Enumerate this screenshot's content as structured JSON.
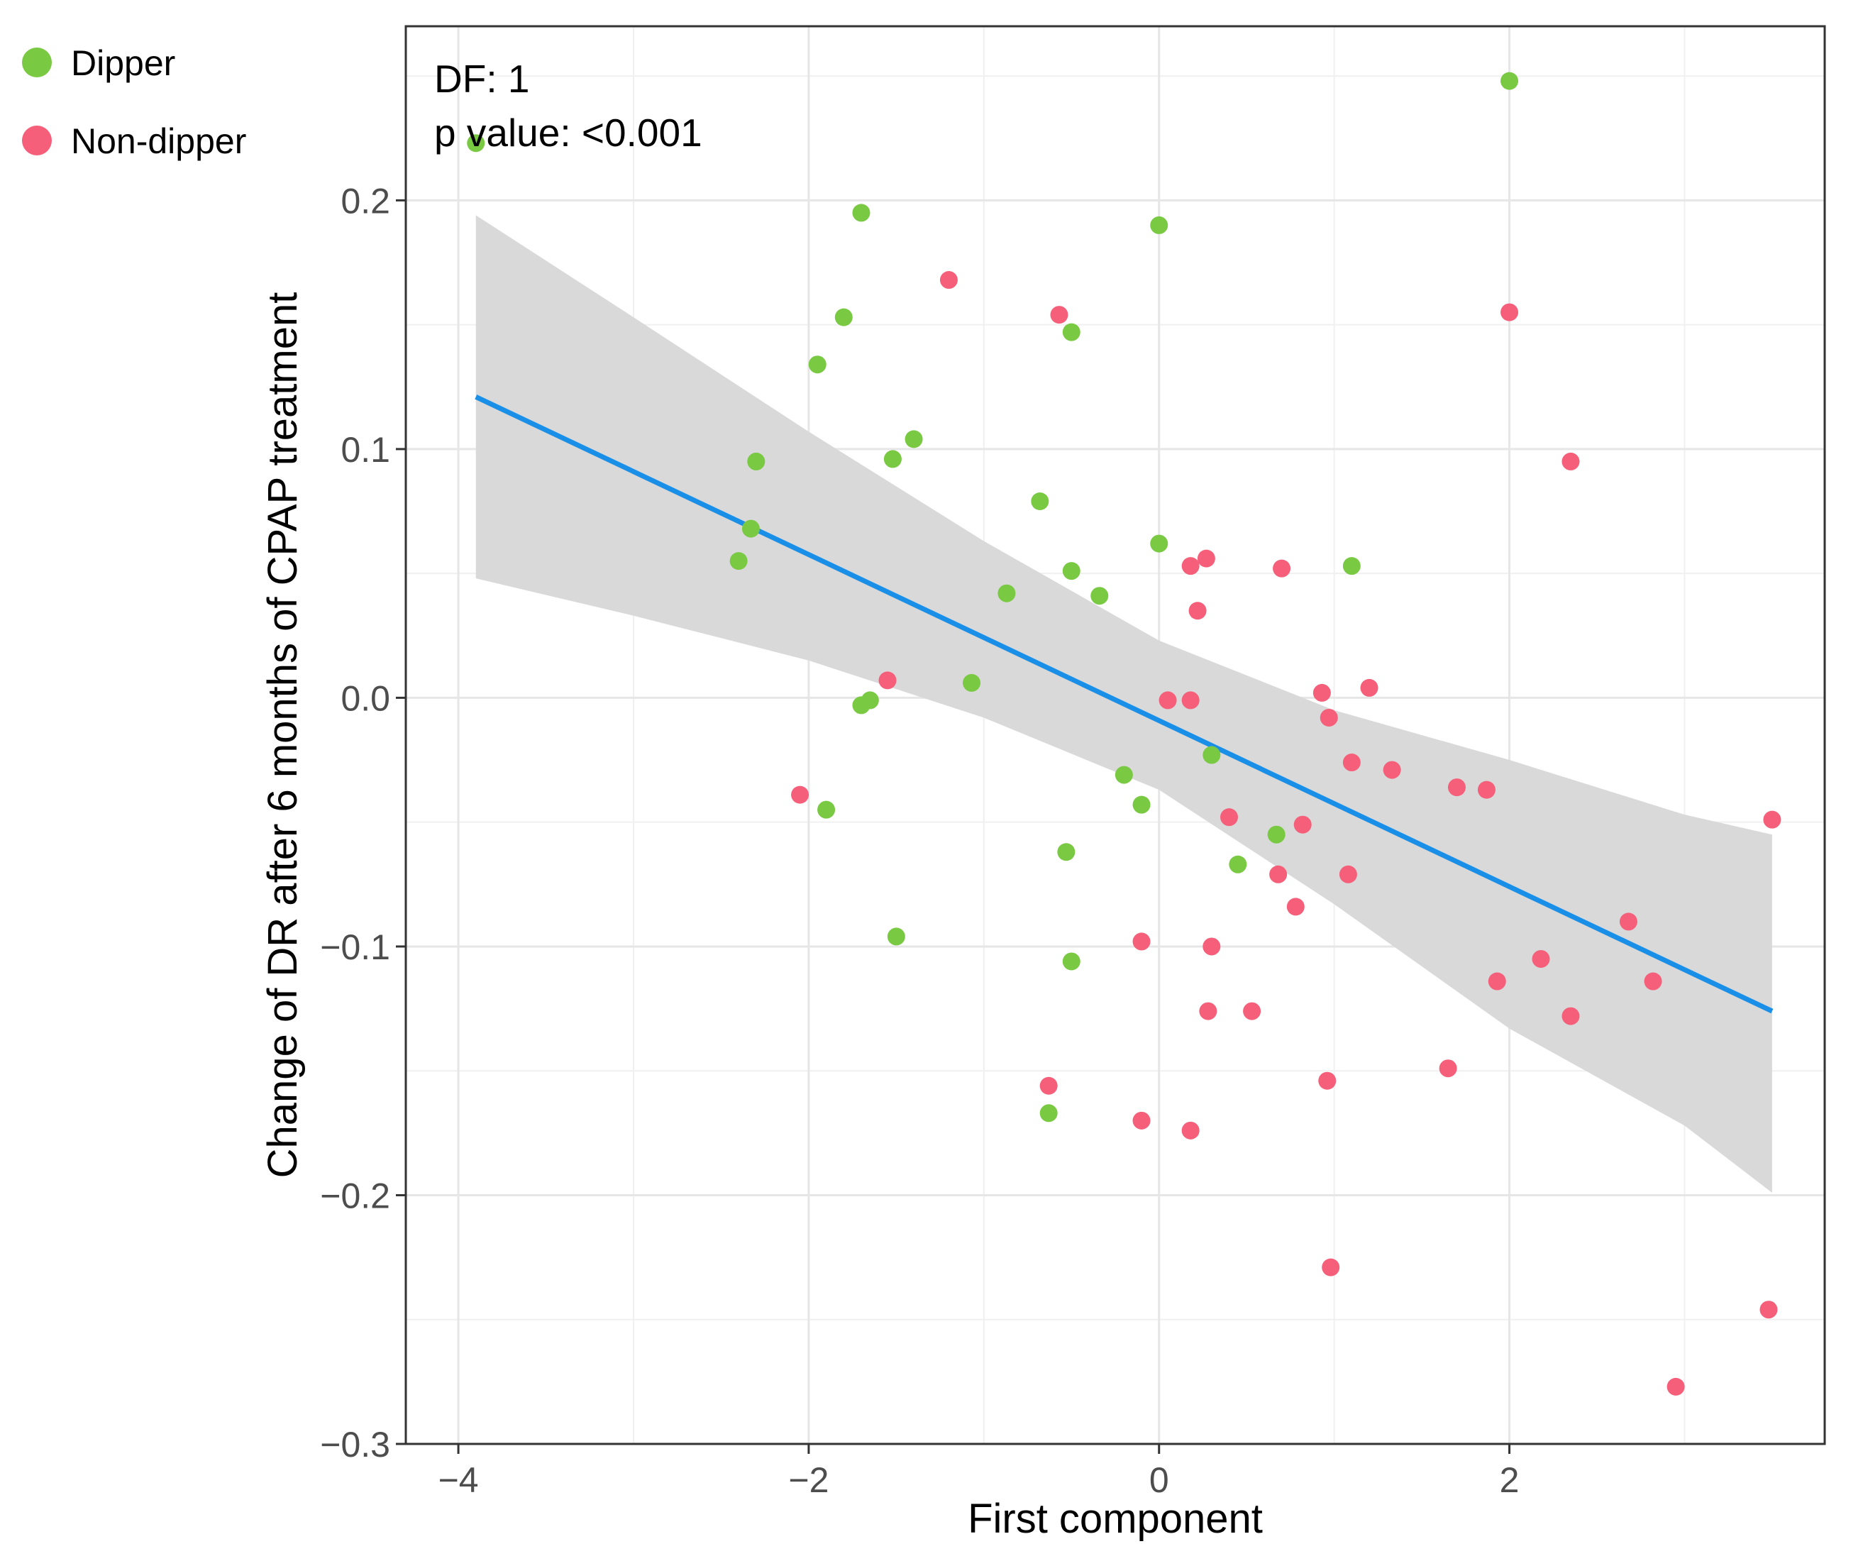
{
  "chart_data": {
    "type": "scatter",
    "title": "",
    "xlabel": "First component",
    "ylabel": "Change of DR after 6 months of CPAP treatment",
    "xlim": [
      -4.3,
      3.8
    ],
    "ylim": [
      -0.3,
      0.27
    ],
    "x_ticks": [
      -4,
      -2,
      0,
      2
    ],
    "x_tick_labels": [
      "−4",
      "−2",
      "0",
      "2"
    ],
    "y_ticks": [
      -0.3,
      -0.2,
      -0.1,
      0.0,
      0.1,
      0.2
    ],
    "y_tick_labels": [
      "−0.3",
      "−0.2",
      "−0.1",
      "0.0",
      "0.1",
      "0.2"
    ],
    "grid": true,
    "legend_position": "top-left",
    "annotations": [
      "DF: 1",
      "p value: <0.001"
    ],
    "colors": {
      "dipper": "#7ac943",
      "non_dipper": "#f55f7a",
      "fit": "#1a8fe8",
      "band": "#d9d9d9"
    },
    "series": [
      {
        "name": "Dipper",
        "color": "#7ac943",
        "points": [
          [
            -3.9,
            0.223
          ],
          [
            2.0,
            0.248
          ],
          [
            -1.7,
            0.195
          ],
          [
            0.0,
            0.19
          ],
          [
            -1.8,
            0.153
          ],
          [
            -0.5,
            0.147
          ],
          [
            -1.95,
            0.134
          ],
          [
            -1.4,
            0.104
          ],
          [
            -2.3,
            0.095
          ],
          [
            -1.52,
            0.096
          ],
          [
            -0.68,
            0.079
          ],
          [
            -2.33,
            0.068
          ],
          [
            0.0,
            0.062
          ],
          [
            -2.4,
            0.055
          ],
          [
            -0.5,
            0.051
          ],
          [
            -0.34,
            0.041
          ],
          [
            -0.87,
            0.042
          ],
          [
            1.1,
            0.053
          ],
          [
            -1.07,
            0.006
          ],
          [
            -1.65,
            -0.001
          ],
          [
            -1.7,
            -0.003
          ],
          [
            0.3,
            -0.023
          ],
          [
            -0.2,
            -0.031
          ],
          [
            -0.1,
            -0.043
          ],
          [
            -1.9,
            -0.045
          ],
          [
            0.67,
            -0.055
          ],
          [
            -0.53,
            -0.062
          ],
          [
            0.45,
            -0.067
          ],
          [
            -1.5,
            -0.096
          ],
          [
            -0.5,
            -0.106
          ],
          [
            -0.63,
            -0.167
          ]
        ]
      },
      {
        "name": "Non-dipper",
        "color": "#f55f7a",
        "points": [
          [
            -1.2,
            0.168
          ],
          [
            -0.57,
            0.154
          ],
          [
            2.0,
            0.155
          ],
          [
            2.35,
            0.095
          ],
          [
            0.18,
            0.053
          ],
          [
            0.27,
            0.056
          ],
          [
            0.7,
            0.052
          ],
          [
            0.22,
            0.035
          ],
          [
            -1.55,
            0.007
          ],
          [
            1.2,
            0.004
          ],
          [
            0.93,
            0.002
          ],
          [
            0.05,
            -0.001
          ],
          [
            0.18,
            -0.001
          ],
          [
            0.97,
            -0.008
          ],
          [
            1.1,
            -0.026
          ],
          [
            1.33,
            -0.029
          ],
          [
            1.7,
            -0.036
          ],
          [
            1.87,
            -0.037
          ],
          [
            -2.05,
            -0.039
          ],
          [
            0.4,
            -0.048
          ],
          [
            3.5,
            -0.049
          ],
          [
            0.82,
            -0.051
          ],
          [
            0.68,
            -0.071
          ],
          [
            1.08,
            -0.071
          ],
          [
            0.78,
            -0.084
          ],
          [
            2.68,
            -0.09
          ],
          [
            -0.1,
            -0.098
          ],
          [
            0.3,
            -0.1
          ],
          [
            2.18,
            -0.105
          ],
          [
            1.93,
            -0.114
          ],
          [
            2.82,
            -0.114
          ],
          [
            0.28,
            -0.126
          ],
          [
            0.53,
            -0.126
          ],
          [
            2.35,
            -0.128
          ],
          [
            1.65,
            -0.149
          ],
          [
            0.96,
            -0.154
          ],
          [
            -0.63,
            -0.156
          ],
          [
            -0.1,
            -0.17
          ],
          [
            0.18,
            -0.174
          ],
          [
            0.98,
            -0.229
          ],
          [
            3.48,
            -0.246
          ],
          [
            2.95,
            -0.277
          ]
        ]
      }
    ],
    "fit_line": {
      "name": "Linear fit",
      "color": "#1a8fe8",
      "x": [
        -3.9,
        3.5
      ],
      "y": [
        0.121,
        -0.126
      ]
    },
    "confidence_band": {
      "x": [
        -3.9,
        -3.0,
        -2.0,
        -1.0,
        0.0,
        1.0,
        2.0,
        3.0,
        3.5
      ],
      "lower": [
        0.048,
        0.033,
        0.015,
        -0.008,
        -0.037,
        -0.083,
        -0.133,
        -0.172,
        -0.199
      ],
      "upper": [
        0.194,
        0.153,
        0.107,
        0.063,
        0.023,
        -0.005,
        -0.025,
        -0.047,
        -0.055
      ]
    }
  }
}
